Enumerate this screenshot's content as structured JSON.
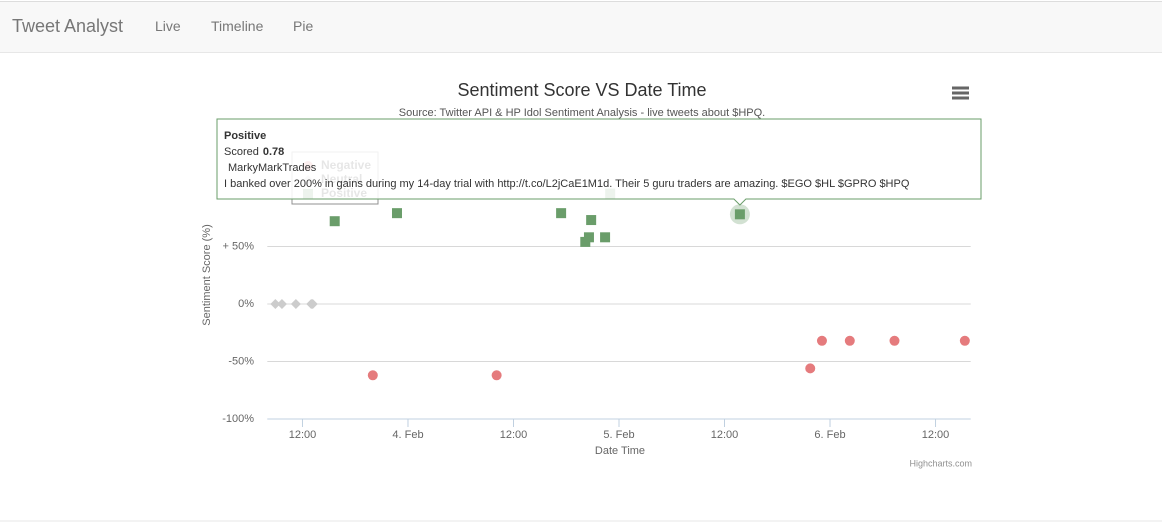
{
  "nav": {
    "brand": "Tweet Analyst",
    "links": [
      "Live",
      "Timeline",
      "Pie"
    ]
  },
  "chart_data": {
    "type": "scatter",
    "title": "Sentiment Score VS Date Time",
    "subtitle": "Source: Twitter API & HP Idol Sentiment Analysis - live tweets about $HPQ.",
    "x_label": "Date Time",
    "y_label": "Sentiment Score (%)",
    "credits": "Highcharts.com",
    "legend": "top-left",
    "grid": true,
    "xlim": [
      "02-03T08:00",
      "02-06T16:00"
    ],
    "xticks": [
      {
        "value": "02-03T12:00",
        "label": "12:00"
      },
      {
        "value": "02-04T00:00",
        "label": "4. Feb"
      },
      {
        "value": "02-04T12:00",
        "label": "12:00"
      },
      {
        "value": "02-05T00:00",
        "label": "5. Feb"
      },
      {
        "value": "02-05T12:00",
        "label": "12:00"
      },
      {
        "value": "02-06T00:00",
        "label": "6. Feb"
      },
      {
        "value": "02-06T12:00",
        "label": "12:00"
      }
    ],
    "ylim": [
      -100,
      100
    ],
    "yticks": [
      {
        "value": -100,
        "label": "-100%"
      },
      {
        "value": -50,
        "label": "-50%"
      },
      {
        "value": 0,
        "label": "0%"
      },
      {
        "value": 50,
        "label": "+ 50%"
      }
    ],
    "series": [
      {
        "name": "Negative",
        "color": "#e57b7d",
        "marker": "circle",
        "x": [
          "02-03T20:00",
          "02-04T10:05",
          "02-05T21:45",
          "02-05T23:05",
          "02-06T02:15",
          "02-06T07:20",
          "02-06T15:20"
        ],
        "values": [
          -62,
          -62,
          -56,
          -32,
          -32,
          -32,
          -32
        ]
      },
      {
        "name": "Neutral",
        "color": "#cccccc",
        "marker": "diamond",
        "x": [
          "02-03T08:55",
          "02-03T09:40",
          "02-03T11:15",
          "02-03T13:00",
          "02-03T13:10"
        ],
        "values": [
          0,
          0,
          0,
          0,
          0
        ]
      },
      {
        "name": "Positive",
        "color": "#6a9d6a",
        "marker": "square",
        "x": [
          "02-03T15:40",
          "02-03T22:45",
          "02-04T17:25",
          "02-04T20:10",
          "02-04T20:35",
          "02-04T20:50",
          "02-04T22:25",
          "02-04T23:00",
          "02-05T13:45"
        ],
        "values": [
          72,
          79,
          79,
          54,
          58,
          73,
          58,
          96,
          78
        ]
      }
    ],
    "tooltip": {
      "series": "Positive",
      "score_label": "Scored",
      "score": "0.78",
      "user": "MarkyMarkTrades",
      "text": "I banked over 200% in gains during my 14-day trial with http://t.co/L2jCaE1M1d. Their 5 guru traders are amazing. $EGO $HL $GPRO $HPQ"
    }
  }
}
